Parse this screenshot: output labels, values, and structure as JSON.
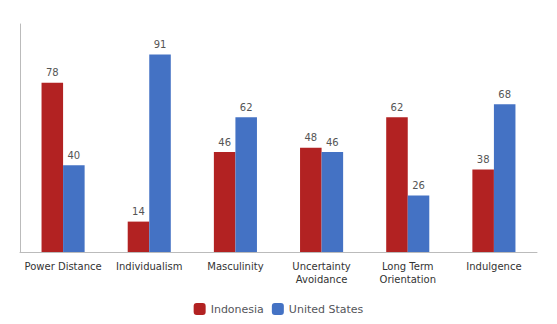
{
  "chart_data": {
    "type": "bar",
    "categories": [
      "Power Distance",
      "Individualism",
      "Masculinity",
      "Uncertainty\nAvoidance",
      "Long Term\nOrientation",
      "Indulgence"
    ],
    "series": [
      {
        "name": "Indonesia",
        "color": "#B22222",
        "values": [
          78,
          14,
          46,
          48,
          62,
          38
        ]
      },
      {
        "name": "United States",
        "color": "#4472C4",
        "values": [
          40,
          91,
          62,
          46,
          26,
          68
        ]
      }
    ],
    "ylim": [
      0,
      105
    ],
    "grid": false,
    "legend": "bottom",
    "data_labels": true,
    "tick_labels": "x"
  }
}
